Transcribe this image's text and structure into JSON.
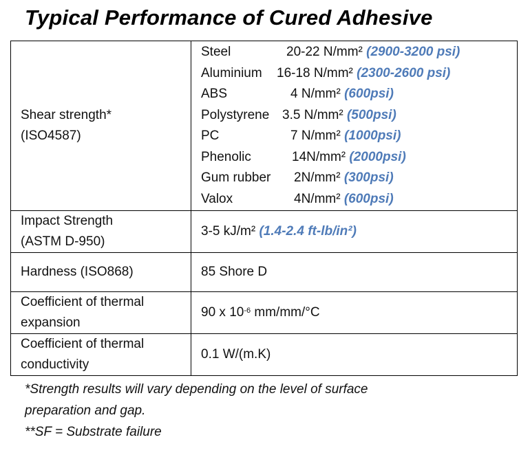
{
  "title": "Typical Performance of Cured Adhesive",
  "shear": {
    "label_line1": "Shear strength*",
    "label_line2": "(ISO4587)",
    "materials": [
      {
        "name": "Steel",
        "value": "20-22 N/mm²",
        "imperial": "(2900-3200 psi)"
      },
      {
        "name": "Aluminium",
        "value": "16-18 N/mm²",
        "imperial": "(2300-2600 psi)"
      },
      {
        "name": "ABS",
        "value": "4 N/mm²",
        "imperial": "(600psi)"
      },
      {
        "name": "Polystyrene",
        "value": "3.5 N/mm²",
        "imperial": "(500psi)"
      },
      {
        "name": "PC",
        "value": "7 N/mm²",
        "imperial": "(1000psi)"
      },
      {
        "name": "Phenolic",
        "value": "14N/mm²",
        "imperial": "(2000psi)"
      },
      {
        "name": "Gum rubber",
        "value": "2N/mm²",
        "imperial": "(300psi)"
      },
      {
        "name": "Valox",
        "value": "4N/mm²",
        "imperial": "(600psi)"
      }
    ]
  },
  "impact": {
    "label_line1": "Impact Strength",
    "label_line2": "(ASTM D-950)",
    "value": "3-5 kJ/m²",
    "imperial": "(1.4-2.4 ft-lb/in²)"
  },
  "hardness": {
    "label": "Hardness (ISO868)",
    "value": "85 Shore D"
  },
  "expansion": {
    "label_line1": "Coefficient of thermal",
    "label_line2": "expansion",
    "value_base": "90 x 10",
    "value_exp": "-6",
    "value_unit": " mm/mm/°C"
  },
  "conductivity": {
    "label_line1": "Coefficient of thermal",
    "label_line2": "conductivity",
    "value": "0.1 W/(m.K)"
  },
  "notes": [
    "*Strength results will vary depending on the level of surface",
    "preparation and gap.",
    "**SF = Substrate failure"
  ],
  "accent_color": "#4f7bb8"
}
